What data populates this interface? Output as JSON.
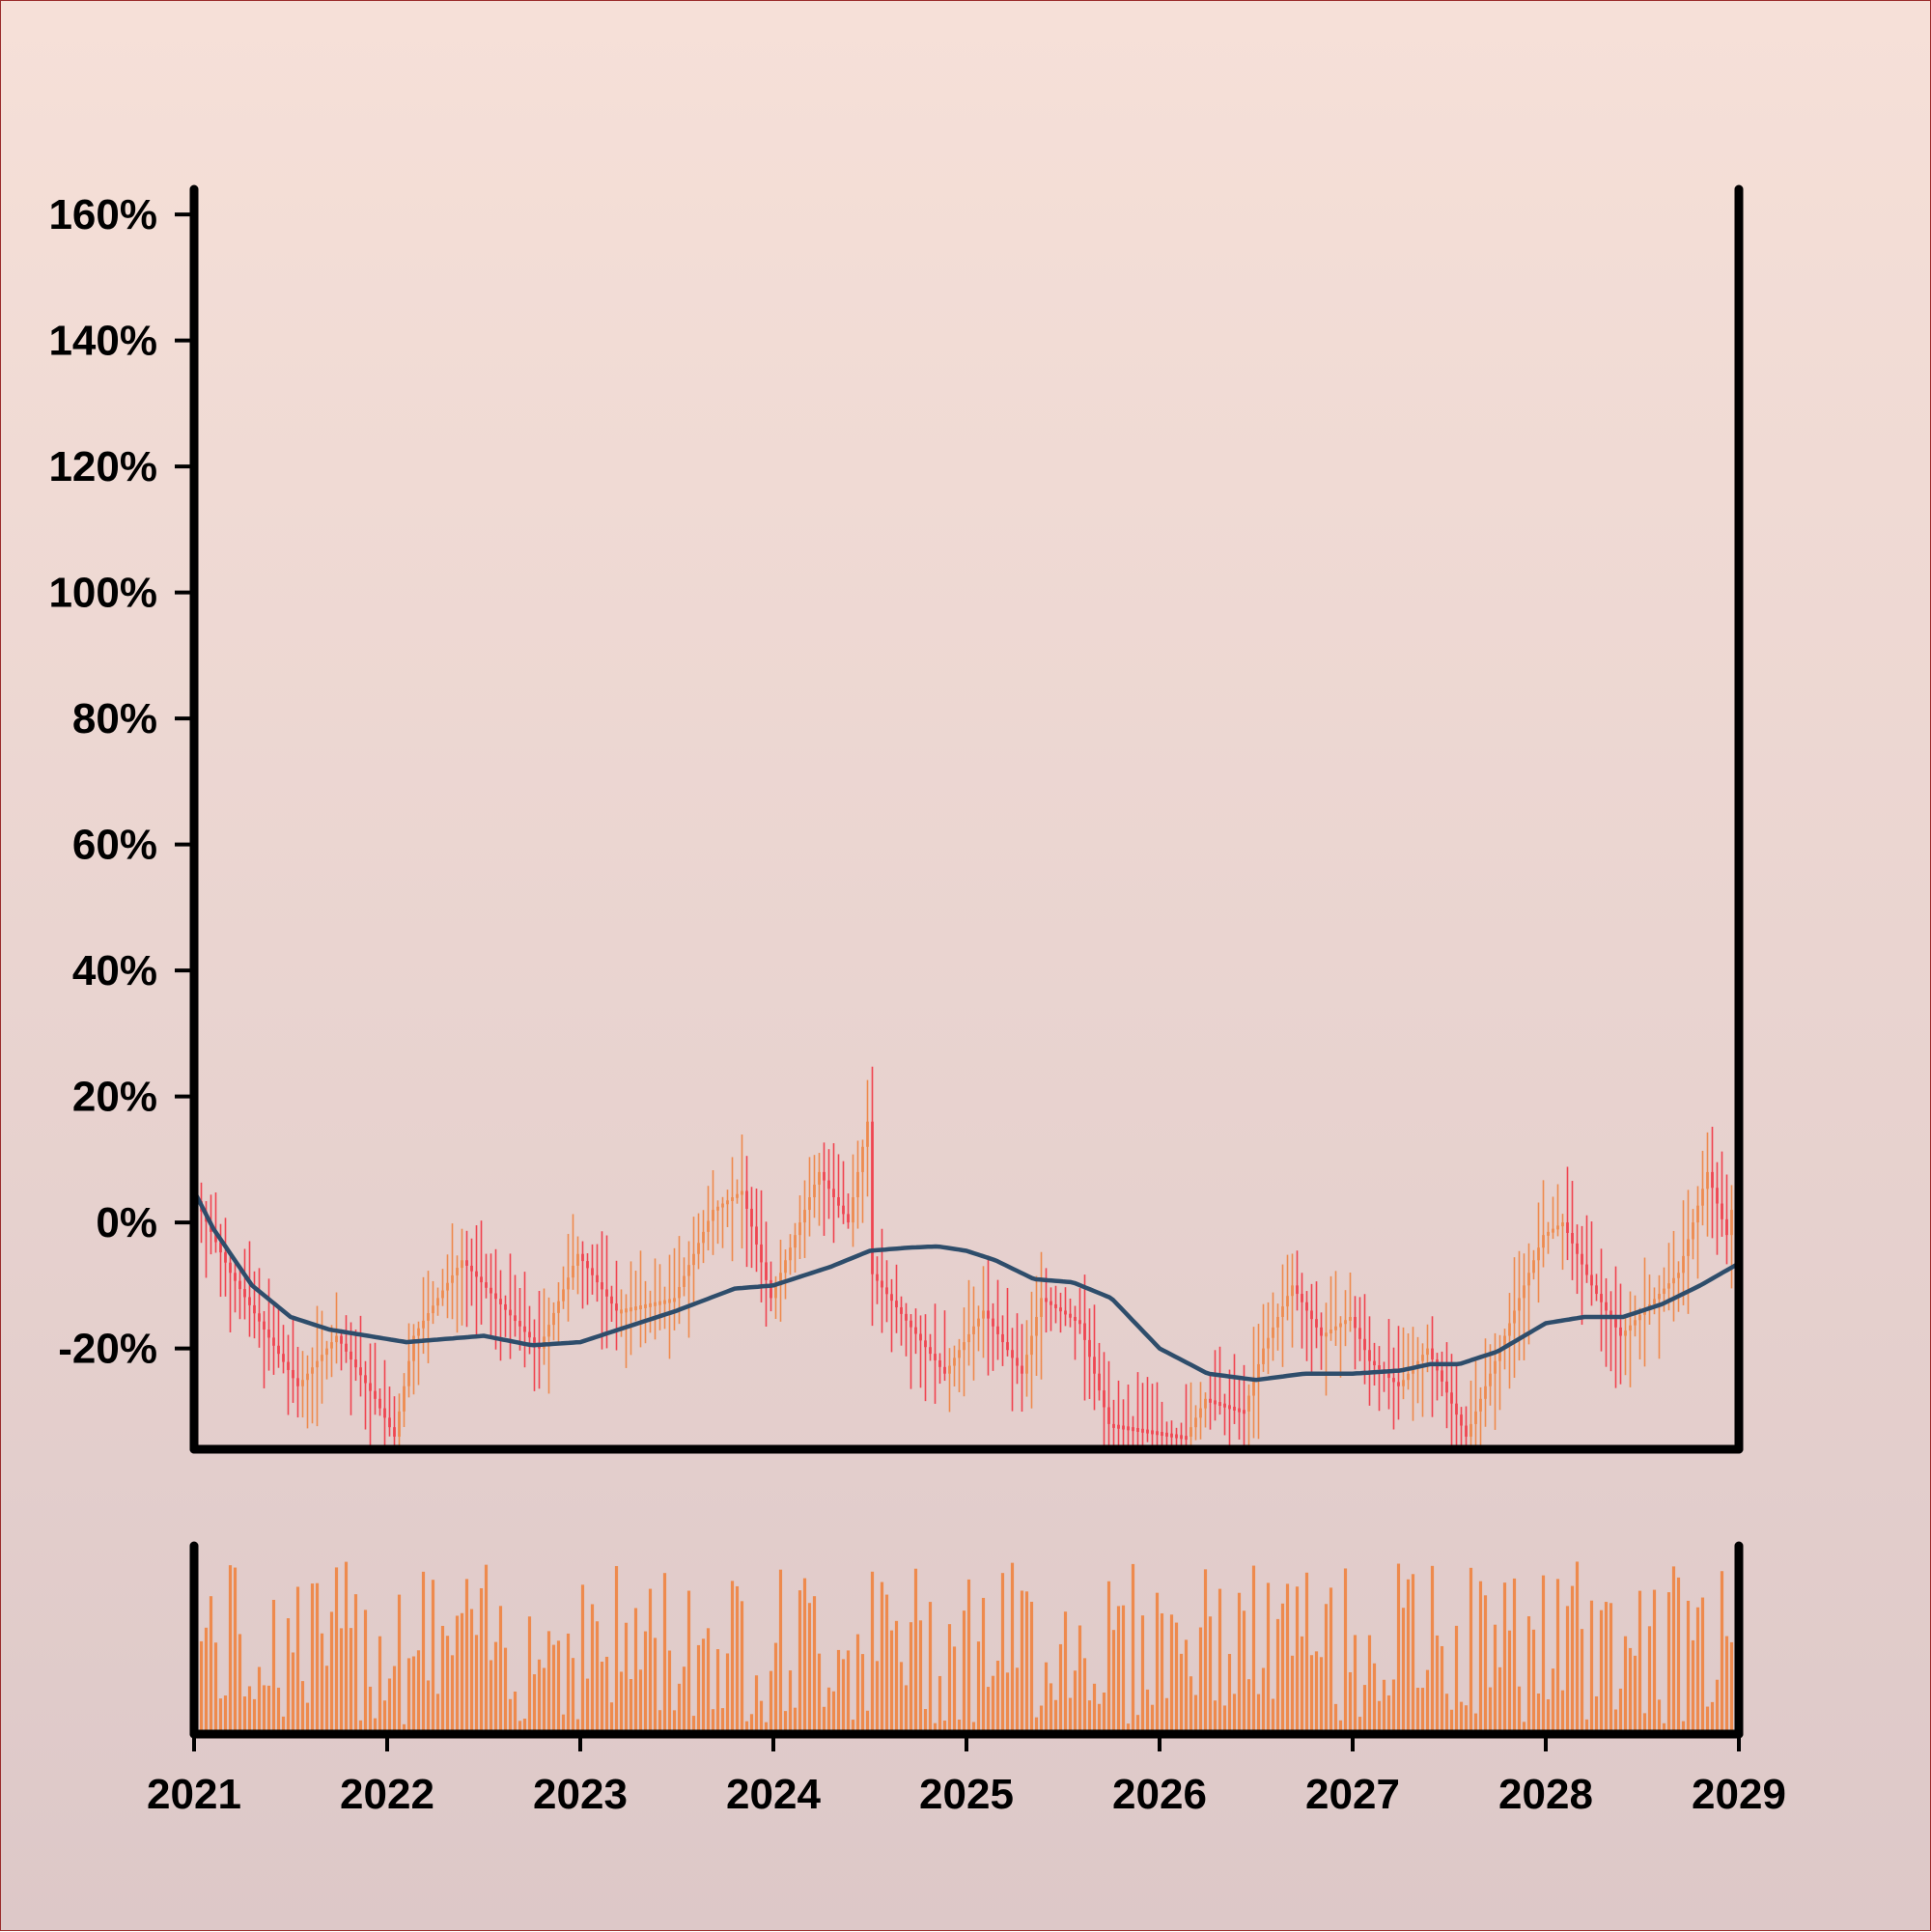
{
  "chart_data": {
    "type": "candlestick",
    "title": "",
    "xlabel": "",
    "ylabel": "",
    "y_ticks": [
      "160%",
      "140%",
      "120%",
      "100%",
      "80%",
      "60%",
      "40%",
      "20%",
      "0%",
      "-20%"
    ],
    "x_ticks": [
      "2021",
      "2022",
      "2023",
      "2024",
      "2025",
      "2026",
      "2027",
      "2028",
      "2029"
    ],
    "x_range": [
      2021,
      2029
    ],
    "ylim": [
      -36,
      164
    ],
    "grid": false,
    "legend": "none",
    "candles_per_year": 40,
    "colors": {
      "up": "#ee8a4d",
      "down": "#f0434f",
      "moving_average": "#2e4d6b",
      "volume": "#ee8a4d",
      "axes": "#000000"
    },
    "close_anchors": [
      {
        "x": 2021.0,
        "y": 5
      },
      {
        "x": 2021.2,
        "y": -8
      },
      {
        "x": 2021.55,
        "y": -26
      },
      {
        "x": 2021.75,
        "y": -18
      },
      {
        "x": 2021.95,
        "y": -28
      },
      {
        "x": 2022.05,
        "y": -34
      },
      {
        "x": 2022.15,
        "y": -18
      },
      {
        "x": 2022.4,
        "y": -6
      },
      {
        "x": 2022.8,
        "y": -20
      },
      {
        "x": 2023.0,
        "y": -5
      },
      {
        "x": 2023.2,
        "y": -14
      },
      {
        "x": 2023.5,
        "y": -12
      },
      {
        "x": 2023.7,
        "y": 2
      },
      {
        "x": 2023.85,
        "y": 5
      },
      {
        "x": 2024.0,
        "y": -12
      },
      {
        "x": 2024.25,
        "y": 8
      },
      {
        "x": 2024.4,
        "y": 0
      },
      {
        "x": 2024.5,
        "y": 16
      },
      {
        "x": 2024.52,
        "y": -8
      },
      {
        "x": 2024.9,
        "y": -24
      },
      {
        "x": 2025.1,
        "y": -14
      },
      {
        "x": 2025.3,
        "y": -24
      },
      {
        "x": 2025.4,
        "y": -12
      },
      {
        "x": 2025.6,
        "y": -16
      },
      {
        "x": 2025.75,
        "y": -32
      },
      {
        "x": 2026.15,
        "y": -34
      },
      {
        "x": 2026.25,
        "y": -28
      },
      {
        "x": 2026.45,
        "y": -30
      },
      {
        "x": 2026.55,
        "y": -20
      },
      {
        "x": 2026.7,
        "y": -10
      },
      {
        "x": 2026.85,
        "y": -18
      },
      {
        "x": 2027.0,
        "y": -15
      },
      {
        "x": 2027.1,
        "y": -22
      },
      {
        "x": 2027.25,
        "y": -26
      },
      {
        "x": 2027.4,
        "y": -20
      },
      {
        "x": 2027.6,
        "y": -34
      },
      {
        "x": 2027.8,
        "y": -18
      },
      {
        "x": 2028.0,
        "y": -2
      },
      {
        "x": 2028.1,
        "y": 0
      },
      {
        "x": 2028.25,
        "y": -10
      },
      {
        "x": 2028.4,
        "y": -18
      },
      {
        "x": 2028.7,
        "y": -8
      },
      {
        "x": 2028.85,
        "y": 8
      },
      {
        "x": 2028.95,
        "y": -2
      },
      {
        "x": 2029.0,
        "y": 6
      }
    ],
    "moving_average": [
      {
        "x": 2021.0,
        "y": 5
      },
      {
        "x": 2021.1,
        "y": -1
      },
      {
        "x": 2021.3,
        "y": -10
      },
      {
        "x": 2021.5,
        "y": -15
      },
      {
        "x": 2021.7,
        "y": -17
      },
      {
        "x": 2021.9,
        "y": -18
      },
      {
        "x": 2022.1,
        "y": -19
      },
      {
        "x": 2022.3,
        "y": -18.5
      },
      {
        "x": 2022.5,
        "y": -18
      },
      {
        "x": 2022.75,
        "y": -19.5
      },
      {
        "x": 2023.0,
        "y": -19
      },
      {
        "x": 2023.2,
        "y": -17
      },
      {
        "x": 2023.5,
        "y": -14
      },
      {
        "x": 2023.8,
        "y": -10.5
      },
      {
        "x": 2024.0,
        "y": -10
      },
      {
        "x": 2024.3,
        "y": -7
      },
      {
        "x": 2024.5,
        "y": -4.5
      },
      {
        "x": 2024.7,
        "y": -4
      },
      {
        "x": 2024.85,
        "y": -3.8
      },
      {
        "x": 2025.0,
        "y": -4.5
      },
      {
        "x": 2025.15,
        "y": -6
      },
      {
        "x": 2025.35,
        "y": -9
      },
      {
        "x": 2025.55,
        "y": -9.5
      },
      {
        "x": 2025.75,
        "y": -12
      },
      {
        "x": 2026.0,
        "y": -20
      },
      {
        "x": 2026.25,
        "y": -24
      },
      {
        "x": 2026.5,
        "y": -25
      },
      {
        "x": 2026.75,
        "y": -24
      },
      {
        "x": 2027.0,
        "y": -24
      },
      {
        "x": 2027.25,
        "y": -23.5
      },
      {
        "x": 2027.4,
        "y": -22.5
      },
      {
        "x": 2027.55,
        "y": -22.5
      },
      {
        "x": 2027.75,
        "y": -20.5
      },
      {
        "x": 2028.0,
        "y": -16
      },
      {
        "x": 2028.2,
        "y": -15
      },
      {
        "x": 2028.4,
        "y": -15
      },
      {
        "x": 2028.6,
        "y": -13
      },
      {
        "x": 2028.8,
        "y": -10
      },
      {
        "x": 2029.0,
        "y": -6.5
      }
    ]
  }
}
